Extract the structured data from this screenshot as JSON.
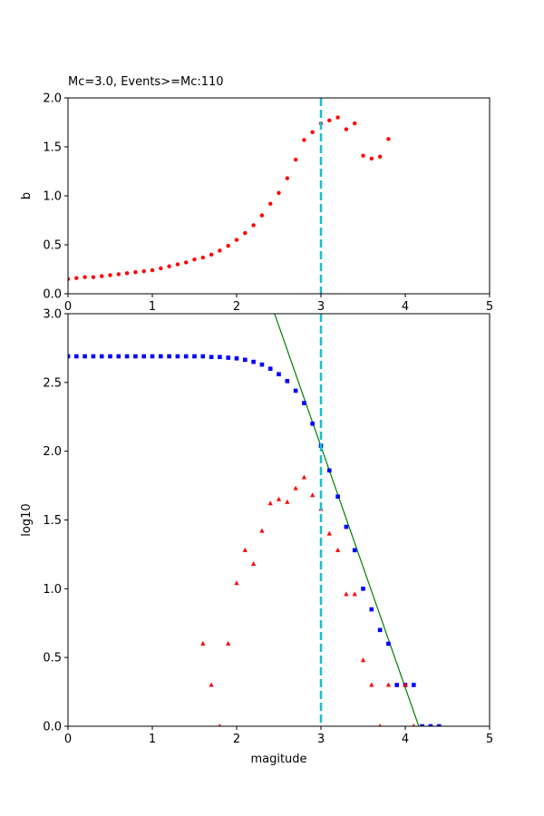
{
  "figure_title": "Mc=3.0, Events>=Mc:110",
  "chart_data": [
    {
      "type": "scatter",
      "title": "Mc=3.0, Events>=Mc:110",
      "xlabel": "",
      "ylabel": "b",
      "xlim": [
        0,
        5
      ],
      "ylim": [
        0,
        2
      ],
      "xticks": [
        "0",
        "1",
        "2",
        "3",
        "4",
        "5"
      ],
      "yticks": [
        "0.0",
        "0.5",
        "1.0",
        "1.5",
        "2.0"
      ],
      "grid": false,
      "mc_line": {
        "x": 3.0,
        "color": "#17becf"
      },
      "series": [
        {
          "marker": "circle",
          "color": "#ff0000",
          "x": [
            0.0,
            0.1,
            0.2,
            0.3,
            0.4,
            0.5,
            0.6,
            0.7,
            0.8,
            0.9,
            1.0,
            1.1,
            1.2,
            1.3,
            1.4,
            1.5,
            1.6,
            1.7,
            1.8,
            1.9,
            2.0,
            2.1,
            2.2,
            2.3,
            2.4,
            2.5,
            2.6,
            2.7,
            2.8,
            2.9,
            3.0,
            3.1,
            3.2,
            3.3,
            3.4,
            3.5,
            3.6,
            3.7,
            3.8
          ],
          "y": [
            0.15,
            0.16,
            0.17,
            0.17,
            0.18,
            0.19,
            0.2,
            0.21,
            0.22,
            0.23,
            0.24,
            0.26,
            0.28,
            0.3,
            0.32,
            0.35,
            0.37,
            0.4,
            0.44,
            0.49,
            0.55,
            0.62,
            0.7,
            0.8,
            0.92,
            1.03,
            1.18,
            1.37,
            1.57,
            1.65,
            1.74,
            1.77,
            1.8,
            1.68,
            1.74,
            1.41,
            1.38,
            1.4,
            1.58
          ]
        }
      ]
    },
    {
      "type": "scatter",
      "title": "",
      "xlabel": "magitude",
      "ylabel": "log10",
      "xlim": [
        0,
        5
      ],
      "ylim": [
        0,
        3
      ],
      "xticks": [
        "0",
        "1",
        "2",
        "3",
        "4",
        "5"
      ],
      "yticks": [
        "0.0",
        "0.5",
        "1.0",
        "1.5",
        "2.0",
        "2.5",
        "3.0"
      ],
      "grid": false,
      "mc_line": {
        "x": 3.0,
        "color": "#17becf"
      },
      "fit_line": {
        "color": "#008000",
        "x1": 2.45,
        "y1": 3.0,
        "x2": 4.16,
        "y2": 0.0
      },
      "series": [
        {
          "marker": "square",
          "color": "#0000ff",
          "x": [
            0.0,
            0.1,
            0.2,
            0.3,
            0.4,
            0.5,
            0.6,
            0.7,
            0.8,
            0.9,
            1.0,
            1.1,
            1.2,
            1.3,
            1.4,
            1.5,
            1.6,
            1.7,
            1.8,
            1.9,
            2.0,
            2.1,
            2.2,
            2.3,
            2.4,
            2.5,
            2.6,
            2.7,
            2.8,
            2.9,
            3.0,
            3.1,
            3.2,
            3.3,
            3.4,
            3.5,
            3.6,
            3.7,
            3.8,
            3.9,
            4.0,
            4.1,
            4.2,
            4.3,
            4.4
          ],
          "y": [
            2.69,
            2.69,
            2.69,
            2.69,
            2.69,
            2.69,
            2.69,
            2.69,
            2.69,
            2.69,
            2.69,
            2.69,
            2.69,
            2.69,
            2.69,
            2.69,
            2.69,
            2.685,
            2.685,
            2.68,
            2.675,
            2.665,
            2.65,
            2.63,
            2.6,
            2.56,
            2.51,
            2.44,
            2.35,
            2.2,
            2.04,
            1.86,
            1.67,
            1.45,
            1.28,
            1.0,
            0.85,
            0.7,
            0.6,
            0.3,
            0.3,
            0.3,
            0.0,
            0.0,
            0.0
          ]
        },
        {
          "marker": "triangle",
          "color": "#ff0000",
          "x": [
            1.6,
            1.7,
            1.8,
            1.9,
            2.0,
            2.1,
            2.2,
            2.3,
            2.4,
            2.5,
            2.6,
            2.7,
            2.8,
            2.9,
            3.0,
            3.1,
            3.2,
            3.3,
            3.4,
            3.5,
            3.6,
            3.7,
            3.8,
            4.0,
            4.1
          ],
          "y": [
            0.6,
            0.3,
            0.0,
            0.6,
            1.04,
            1.28,
            1.18,
            1.42,
            1.62,
            1.65,
            1.63,
            1.73,
            1.81,
            1.68,
            1.58,
            1.4,
            1.28,
            0.96,
            0.96,
            0.48,
            0.3,
            0.0,
            0.3,
            0.3,
            0.0
          ]
        }
      ]
    }
  ]
}
